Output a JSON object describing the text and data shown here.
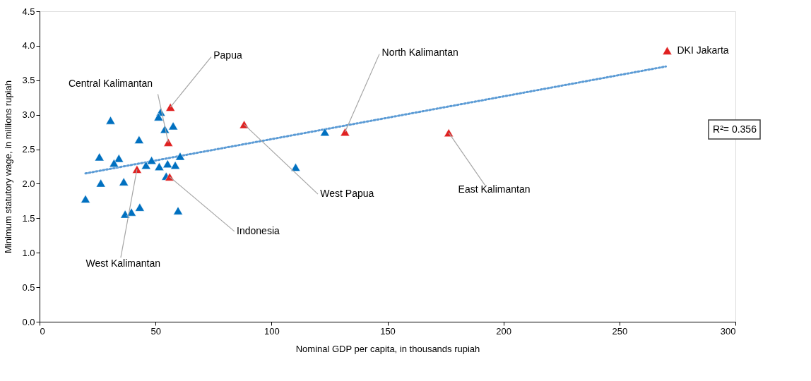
{
  "chart_data": {
    "type": "scatter",
    "xlabel": "Nominal GDP per capita, in thousands rupiah",
    "ylabel": "Minimum statutory wage, in millions rupiah",
    "xlim": [
      0,
      300
    ],
    "xticks": [
      0,
      50,
      100,
      150,
      200,
      250,
      300
    ],
    "ylim": [
      0,
      4.5
    ],
    "yticks": [
      {
        "value": 0,
        "label": "0.0"
      },
      {
        "value": 0.5,
        "label": "0.5"
      },
      {
        "value": 1,
        "label": "1.0"
      },
      {
        "value": 1.5,
        "label": "1.5"
      },
      {
        "value": 2,
        "label": "2.0"
      },
      {
        "value": 2.5,
        "label": "2.5"
      },
      {
        "value": 3,
        "label": "3.0"
      },
      {
        "value": 3.5,
        "label": "3.5"
      },
      {
        "value": 4,
        "label": "4.0"
      },
      {
        "value": 4.5,
        "label": "4.5"
      }
    ],
    "grid": false,
    "marker": "triangle",
    "series": [
      {
        "type": "line",
        "line_style": "dotted",
        "marker": "none",
        "color": "#5b9bd5",
        "x": [
          19.8,
          270
        ],
        "values": [
          2.15,
          3.7
        ]
      },
      {
        "color": "#0070c0",
        "x": [
          52.2,
          51.3,
          30.6,
          54.0,
          57.6,
          42.9,
          25.8,
          34.2,
          32.1,
          45.9,
          48.3,
          51.6,
          55.2,
          58.5,
          60.6,
          54.6,
          26.4,
          36.3,
          19.8,
          36.9,
          39.6,
          43.2,
          59.7,
          123,
          110.4
        ],
        "values": [
          3.04,
          2.97,
          2.92,
          2.79,
          2.84,
          2.64,
          2.39,
          2.37,
          2.3,
          2.27,
          2.34,
          2.25,
          2.29,
          2.27,
          2.4,
          2.11,
          2.01,
          2.03,
          1.78,
          1.56,
          1.59,
          1.66,
          1.61,
          2.75,
          2.24
        ]
      },
      {
        "color": "#e02020",
        "x": [
          56.4,
          55.5,
          42.0,
          56.1,
          88.2,
          131.7,
          176.4,
          270.6
        ],
        "values": [
          3.11,
          2.6,
          2.21,
          2.1,
          2.86,
          2.75,
          2.74,
          3.93
        ]
      }
    ],
    "annotations": [
      {
        "text": "Papua",
        "x": 56.4,
        "y": 3.11
      },
      {
        "text": "Central Kalimantan",
        "x": 55.5,
        "y": 2.6
      },
      {
        "text": "West Kalimantan",
        "x": 42.0,
        "y": 2.21
      },
      {
        "text": "Indonesia",
        "x": 56.1,
        "y": 2.1
      },
      {
        "text": "West Papua",
        "x": 88.2,
        "y": 2.86
      },
      {
        "text": "North Kalimantan",
        "x": 131.7,
        "y": 2.75
      },
      {
        "text": "East Kalimantan",
        "x": 176.4,
        "y": 2.74
      },
      {
        "text": "DKI Jakarta",
        "x": 270.6,
        "y": 3.93
      },
      "R²= 0.356"
    ]
  }
}
